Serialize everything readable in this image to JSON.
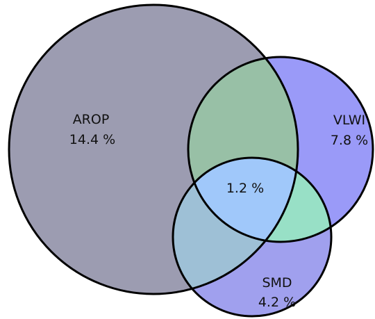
{
  "sets": [
    {
      "id": "arop",
      "name": "AROP",
      "value": "14.4 %",
      "color": "#9c9cb1"
    },
    {
      "id": "vlwi",
      "name": "VLWI",
      "value": "7.8 %",
      "color": "#9a9af8"
    },
    {
      "id": "smd",
      "name": "SMD",
      "value": "4.2 %",
      "color": "#a0a0ee"
    }
  ],
  "regions": {
    "arop_vlwi": {
      "color": "#98c0a6"
    },
    "arop_smd": {
      "color": "#9ec0d6"
    },
    "vlwi_smd": {
      "color": "#98e0c6"
    },
    "all": {
      "color": "#a0c8fa",
      "value": "1.2 %"
    }
  },
  "outline_color": "#000000"
}
